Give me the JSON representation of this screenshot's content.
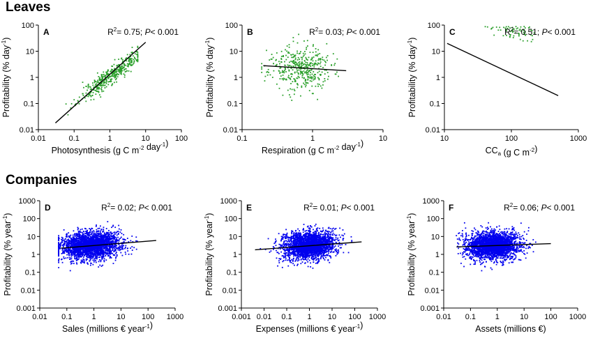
{
  "sections": {
    "leaves": "Leaves",
    "companies": "Companies"
  },
  "chart_data": [
    {
      "type": "scatter",
      "letter": "A",
      "group": "leaves",
      "color": "#2ca02c",
      "stat": {
        "r2": "0.75",
        "p": "0.001"
      },
      "ylabel": {
        "pre": "Profitability (% day",
        "sup": "-1",
        "post": ")"
      },
      "xlabel": {
        "parts": [
          {
            "t": "Photosynthesis (g C m"
          },
          {
            "t": "-2",
            "s": "sup"
          },
          {
            "t": " day"
          },
          {
            "t": "-1",
            "s": "sup"
          },
          {
            "t": ")"
          }
        ]
      },
      "xscale": "log",
      "yscale": "log",
      "xlim": [
        0.01,
        100
      ],
      "ylim": [
        0.01,
        100
      ],
      "xticks": [
        "0.01",
        "0.1",
        "1",
        "10",
        "100"
      ],
      "yticks": [
        "0.01",
        "0.1",
        "1",
        "10",
        "100"
      ],
      "trend": [
        [
          0.03,
          0.018
        ],
        [
          10,
          22
        ]
      ],
      "cloud": {
        "n": 420,
        "seed": 11,
        "xcenter": 1.1,
        "xspread": 0.45,
        "slope": 1.0,
        "yintercept": 0.09,
        "yspread": 0.18,
        "xmin": 0.025,
        "xmax": 6
      }
    },
    {
      "type": "scatter",
      "letter": "B",
      "group": "leaves",
      "color": "#2ca02c",
      "stat": {
        "r2": "0.03",
        "p": "0.001"
      },
      "ylabel": {
        "pre": "Profitability (% day",
        "sup": "-1",
        "post": ")"
      },
      "xlabel": {
        "parts": [
          {
            "t": "Respiration (g C m"
          },
          {
            "t": "-2",
            "s": "sup"
          },
          {
            "t": " day"
          },
          {
            "t": "-1",
            "s": "sup"
          },
          {
            "t": ")"
          }
        ]
      },
      "xscale": "log",
      "yscale": "log",
      "xlim": [
        0.1,
        10
      ],
      "ylim": [
        0.01,
        100
      ],
      "xticks": [
        "0.1",
        "1",
        "10"
      ],
      "yticks": [
        "0.01",
        "0.1",
        "1",
        "10",
        "100"
      ],
      "trend": [
        [
          0.2,
          2.8
        ],
        [
          3,
          1.8
        ]
      ],
      "cloud": {
        "n": 420,
        "seed": 23,
        "xcenter": 0.65,
        "xspread": 0.22,
        "slope": -0.15,
        "yintercept": 0.35,
        "yspread": 0.42,
        "xmin": 0.19,
        "xmax": 3.2
      }
    },
    {
      "type": "scatter",
      "letter": "C",
      "group": "leaves",
      "color": "#2ca02c",
      "stat": {
        "r2": "0.51",
        "p": "0.001"
      },
      "ylabel": {
        "pre": "Profitability (% day",
        "sup": "-1",
        "post": ")"
      },
      "xlabel": {
        "parts": [
          {
            "t": "CC"
          },
          {
            "t": "a",
            "s": "sub"
          },
          {
            "t": " (g C m"
          },
          {
            "t": "-2",
            "s": "sup"
          },
          {
            "t": ")"
          }
        ]
      },
      "xscale": "log",
      "yscale": "log",
      "xlim": [
        10,
        1000
      ],
      "ylim": [
        0.01,
        100
      ],
      "xticks": [
        "10",
        "100",
        "1000"
      ],
      "yticks": [
        "0.01",
        "0.1",
        "1",
        "10",
        "100"
      ],
      "trend": [
        [
          11,
          20
        ],
        [
          500,
          0.2
        ]
      ],
      "cloud": {
        "n": 420,
        "seed": 37,
        "xcenter": 55,
        "xspread": 0.25,
        "slope": -1.2,
        "yintercept": 2.4,
        "yspread": 0.28,
        "xmin": 12,
        "xmax": 480
      }
    },
    {
      "type": "scatter",
      "letter": "D",
      "group": "companies",
      "color": "#0000ee",
      "stat": {
        "r2": "0.02",
        "p": "0.001"
      },
      "ylabel": {
        "pre": "Profitability (% year",
        "sup": "-1",
        "post": ")"
      },
      "xlabel": {
        "parts": [
          {
            "t": "Sales (millions € year"
          },
          {
            "t": "-1",
            "s": "sup"
          },
          {
            "t": ")"
          }
        ]
      },
      "xscale": "log",
      "yscale": "log",
      "xlim": [
        0.01,
        1000
      ],
      "ylim": [
        0.001,
        1000
      ],
      "xticks": [
        "0.01",
        "0.1",
        "1",
        "10",
        "100",
        "1000"
      ],
      "yticks": [
        "0.001",
        "0.01",
        "0.1",
        "1",
        "10",
        "100",
        "1000"
      ],
      "trend": [
        [
          0.06,
          2.2
        ],
        [
          200,
          6
        ]
      ],
      "cloud": {
        "n": 2600,
        "seed": 53,
        "xcenter": 0.8,
        "xspread": 0.55,
        "slope": 0.12,
        "yintercept": 0.5,
        "yspread": 0.38,
        "xmin": 0.05,
        "xmax": 220
      }
    },
    {
      "type": "scatter",
      "letter": "E",
      "group": "companies",
      "color": "#0000ee",
      "stat": {
        "r2": "0.01",
        "p": "0.001"
      },
      "ylabel": {
        "pre": "Profitability (% year",
        "sup": "-1",
        "post": ")"
      },
      "xlabel": {
        "parts": [
          {
            "t": "Expenses (millions € year"
          },
          {
            "t": "-1",
            "s": "sup"
          },
          {
            "t": ")"
          }
        ]
      },
      "xscale": "log",
      "yscale": "log",
      "xlim": [
        0.001,
        1000
      ],
      "ylim": [
        0.001,
        1000
      ],
      "xticks": [
        "0.001",
        "0.01",
        "0.1",
        "1",
        "10",
        "100",
        "1000"
      ],
      "yticks": [
        "0.001",
        "0.01",
        "0.1",
        "1",
        "10",
        "100",
        "1000"
      ],
      "trend": [
        [
          0.004,
          1.8
        ],
        [
          200,
          5
        ]
      ],
      "cloud": {
        "n": 2600,
        "seed": 71,
        "xcenter": 1.0,
        "xspread": 0.55,
        "slope": 0.1,
        "yintercept": 0.5,
        "yspread": 0.38,
        "xmin": 0.005,
        "xmax": 220
      }
    },
    {
      "type": "scatter",
      "letter": "F",
      "group": "companies",
      "color": "#0000ee",
      "stat": {
        "r2": "0.06",
        "p": "0.001"
      },
      "ylabel": {
        "pre": "Profitability (% year",
        "sup": "-1",
        "post": ")"
      },
      "xlabel": {
        "parts": [
          {
            "t": "Assets (millions €)"
          }
        ]
      },
      "xscale": "log",
      "yscale": "log",
      "xlim": [
        0.01,
        1000
      ],
      "ylim": [
        0.001,
        1000
      ],
      "xticks": [
        "0.01",
        "0.1",
        "1",
        "10",
        "100",
        "1000"
      ],
      "yticks": [
        "0.001",
        "0.01",
        "0.1",
        "1",
        "10",
        "100",
        "1000"
      ],
      "trend": [
        [
          0.03,
          2.6
        ],
        [
          100,
          4
        ]
      ],
      "cloud": {
        "n": 2600,
        "seed": 89,
        "xcenter": 0.7,
        "xspread": 0.5,
        "slope": 0.06,
        "yintercept": 0.48,
        "yspread": 0.38,
        "xmin": 0.025,
        "xmax": 110
      }
    }
  ]
}
